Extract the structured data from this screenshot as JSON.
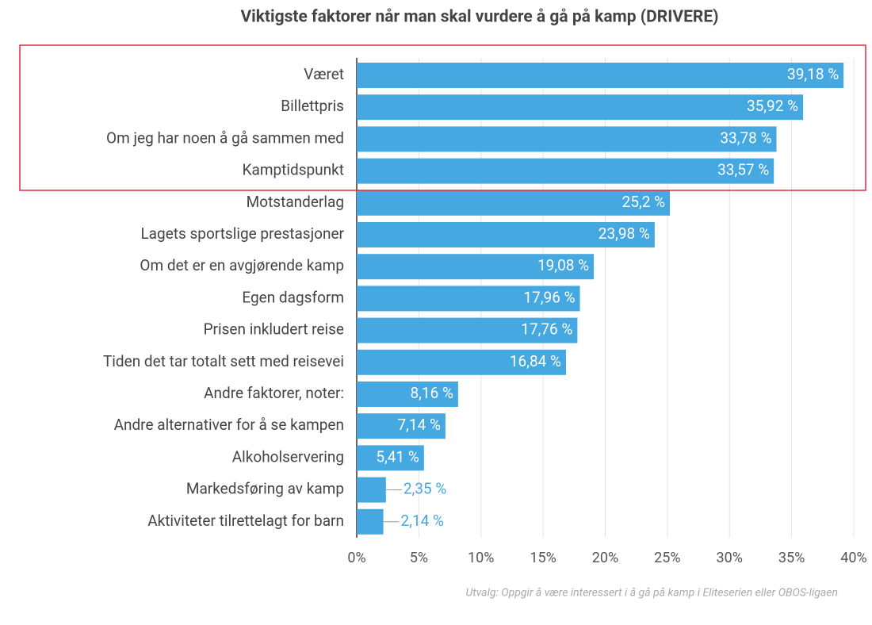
{
  "chart_data": {
    "type": "bar",
    "orientation": "horizontal",
    "title": "Viktigste faktorer når man skal vurdere å gå på kamp (DRIVERE)",
    "footnote": "Utvalg: Oppgir å være interessert i å gå på kamp i Eliteserien eller OBOS-ligaen",
    "categories": [
      "Været",
      "Billettpris",
      "Om jeg har noen å gå sammen med",
      "Kamptidspunkt",
      "Motstanderlag",
      "Lagets sportslige prestasjoner",
      "Om det er en avgjørende kamp",
      "Egen dagsform",
      "Prisen inkludert reise",
      "Tiden det tar totalt sett med reisevei",
      "Andre faktorer, noter:",
      "Andre alternativer for å se kampen",
      "Alkoholservering",
      "Markedsføring av kamp",
      "Aktiviteter tilrettelagt for barn"
    ],
    "values": [
      39.18,
      35.92,
      33.78,
      33.57,
      25.2,
      23.98,
      19.08,
      17.96,
      17.76,
      16.84,
      8.16,
      7.14,
      5.41,
      2.35,
      2.14
    ],
    "value_labels": [
      "39,18 %",
      "35,92 %",
      "33,78 %",
      "33,57 %",
      "25,2 %",
      "23,98 %",
      "19,08 %",
      "17,96 %",
      "17,76 %",
      "16,84 %",
      "8,16 %",
      "7,14 %",
      "5,41 %",
      "2,35 %",
      "2,14 %"
    ],
    "color": "#45a8e0",
    "xlim": [
      0,
      40
    ],
    "xticks": [
      {
        "value": 0,
        "label": "0%"
      },
      {
        "value": 5,
        "label": "5%"
      },
      {
        "value": 10,
        "label": "10%"
      },
      {
        "value": 15,
        "label": "15%"
      },
      {
        "value": 20,
        "label": "20%"
      },
      {
        "value": 25,
        "label": "25%"
      },
      {
        "value": 30,
        "label": "30%"
      },
      {
        "value": 35,
        "label": "35%"
      },
      {
        "value": 40,
        "label": "40%"
      }
    ],
    "grid": true
  }
}
